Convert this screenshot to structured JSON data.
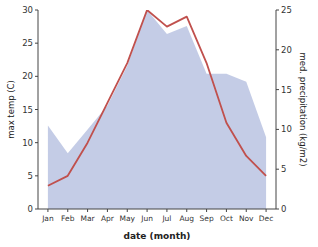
{
  "chart_data": {
    "type": "line",
    "xlabel": "date (month)",
    "ylabel": "max temp (C)",
    "y2label": "med. precipitation (kg/m2)",
    "categories": [
      "Jan",
      "Feb",
      "Mar",
      "Apr",
      "May",
      "Jun",
      "Jul",
      "Aug",
      "Sep",
      "Oct",
      "Nov",
      "Dec"
    ],
    "series": [
      {
        "type": "area",
        "axis": "y2",
        "color": "#b0bbdd",
        "values": [
          10.5,
          7.0,
          10.0,
          13.0,
          18.0,
          25.0,
          22.0,
          23.0,
          17.0,
          17.0,
          16.0,
          9.0
        ]
      },
      {
        "type": "line",
        "axis": "y",
        "color": "#c0504d",
        "values": [
          3.5,
          5.0,
          10.0,
          16.0,
          22.0,
          30.0,
          27.5,
          29.0,
          22.0,
          13.0,
          8.0,
          5.0
        ]
      }
    ],
    "ylim": [
      0,
      30
    ],
    "yticks": [
      0,
      5,
      10,
      15,
      20,
      25,
      30
    ],
    "y2lim": [
      0,
      25
    ],
    "y2ticks": [
      0,
      5,
      10,
      15,
      20,
      25
    ],
    "grid": false
  }
}
